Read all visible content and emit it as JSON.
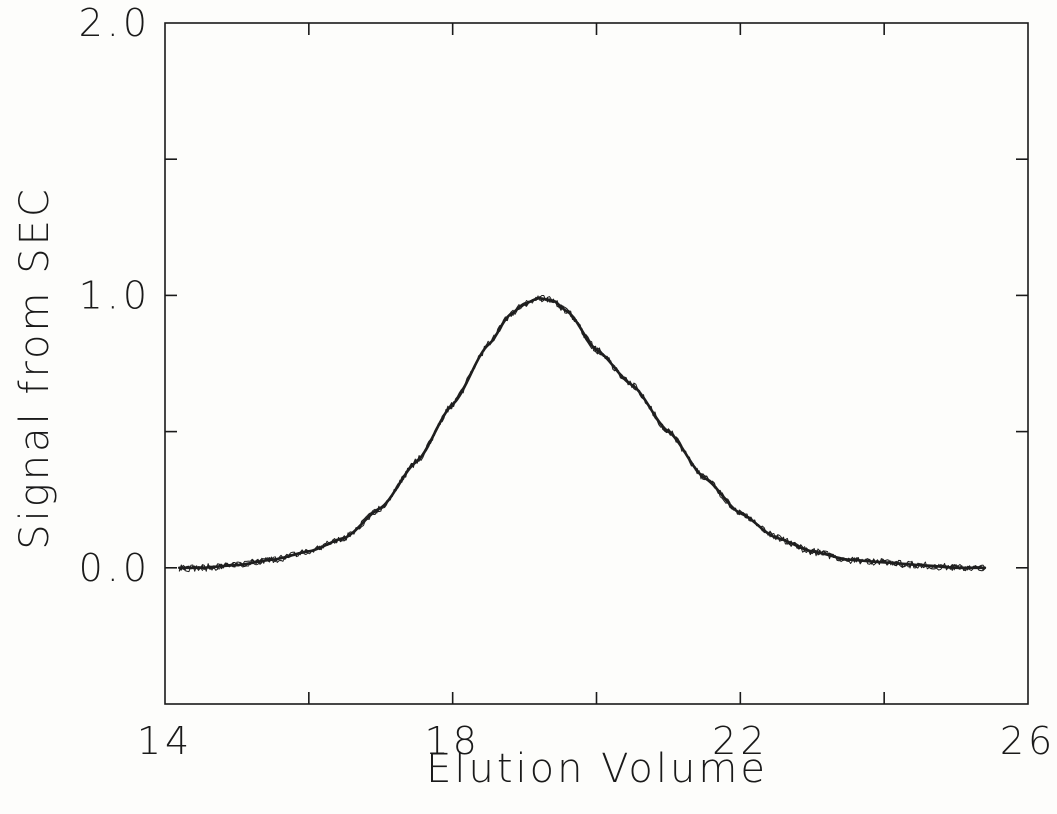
{
  "chart_data": {
    "type": "line",
    "title": "",
    "xlabel": "Elution Volume",
    "ylabel": "Signal from SEC",
    "xlim": [
      14,
      26
    ],
    "ylim": [
      -0.5,
      2.0
    ],
    "x_tick_values": [
      14,
      16,
      18,
      20,
      22,
      24,
      26
    ],
    "x_tick_labels": [
      "14",
      "",
      "18",
      "",
      "22",
      "",
      "26"
    ],
    "y_tick_values": [
      -0.5,
      0.0,
      0.5,
      1.0,
      1.5,
      2.0
    ],
    "y_tick_labels": [
      "",
      "0.0",
      "",
      "1.0",
      "",
      "2.0"
    ],
    "grid": false,
    "legend": "none",
    "series_color": "#1f1f1f",
    "series": [
      {
        "x": [
          14.2,
          14.5,
          15.0,
          15.5,
          16.0,
          16.5,
          17.0,
          17.5,
          18.0,
          18.5,
          18.8,
          19.0,
          19.2,
          19.4,
          19.6,
          20.0,
          20.5,
          21.0,
          21.5,
          22.0,
          22.5,
          23.0,
          23.5,
          24.0,
          24.5,
          25.0,
          25.4
        ],
        "y": [
          0.0,
          0.0,
          0.01,
          0.03,
          0.06,
          0.11,
          0.22,
          0.39,
          0.6,
          0.82,
          0.93,
          0.97,
          0.99,
          0.98,
          0.94,
          0.8,
          0.67,
          0.5,
          0.33,
          0.2,
          0.11,
          0.06,
          0.03,
          0.02,
          0.01,
          0.0,
          0.0
        ]
      }
    ]
  }
}
